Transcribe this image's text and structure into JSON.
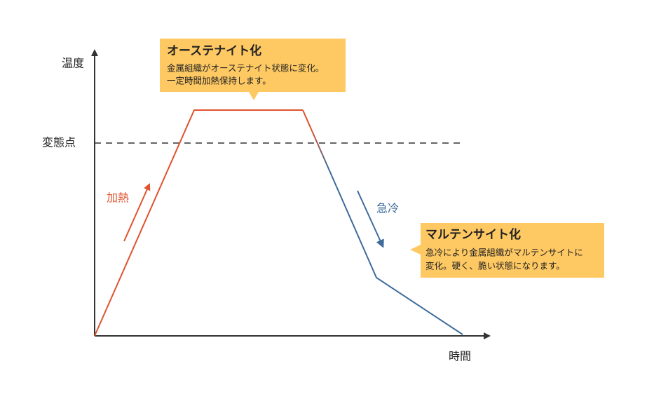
{
  "axes": {
    "y_label": "温度",
    "x_label": "時間",
    "threshold_label": "変態点"
  },
  "annotations": {
    "heating": "加熱",
    "quenching": "急冷"
  },
  "callouts": [
    {
      "title": "オーステナイト化",
      "lines": [
        "金属組織がオーステナイト状態に変化。",
        "一定時間加熱保持します。"
      ]
    },
    {
      "title": "マルテンサイト化",
      "lines": [
        "急冷により金属組織がマルテンサイトに",
        "変化。硬く、脆い状態になります。"
      ]
    }
  ]
}
